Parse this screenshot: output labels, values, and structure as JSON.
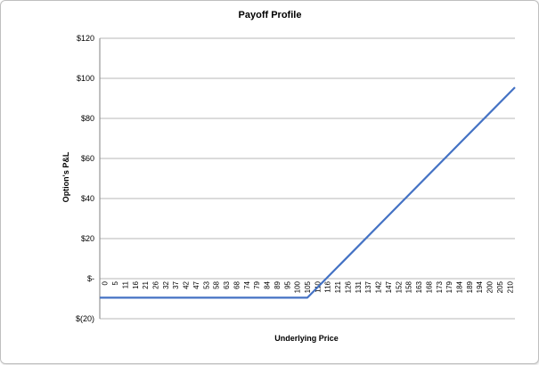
{
  "chart_data": {
    "type": "line",
    "title": "Payoff Profile",
    "xlabel": "Underlying Price",
    "ylabel": "Option's P&L",
    "ylim": [
      -20,
      120
    ],
    "y_ticks": [
      120,
      100,
      80,
      60,
      40,
      20,
      0,
      -20
    ],
    "y_tick_labels": [
      "$120",
      "$100",
      "$80",
      "$60",
      "$40",
      "$20",
      "$-",
      "$(20)"
    ],
    "x_tick_labels": [
      "0",
      "5",
      "11",
      "16",
      "21",
      "26",
      "32",
      "37",
      "42",
      "47",
      "53",
      "58",
      "63",
      "68",
      "74",
      "79",
      "84",
      "89",
      "95",
      "100",
      "105",
      "110",
      "116",
      "121",
      "126",
      "131",
      "137",
      "142",
      "147",
      "152",
      "158",
      "163",
      "168",
      "173",
      "179",
      "184",
      "189",
      "194",
      "200",
      "205",
      "210"
    ],
    "grid": true,
    "legend": "none",
    "line_color": "#4472c4",
    "series": [
      {
        "points": [
          [
            0,
            -9.5
          ],
          [
            105,
            -9.5
          ],
          [
            210,
            95.5
          ]
        ]
      }
    ]
  }
}
